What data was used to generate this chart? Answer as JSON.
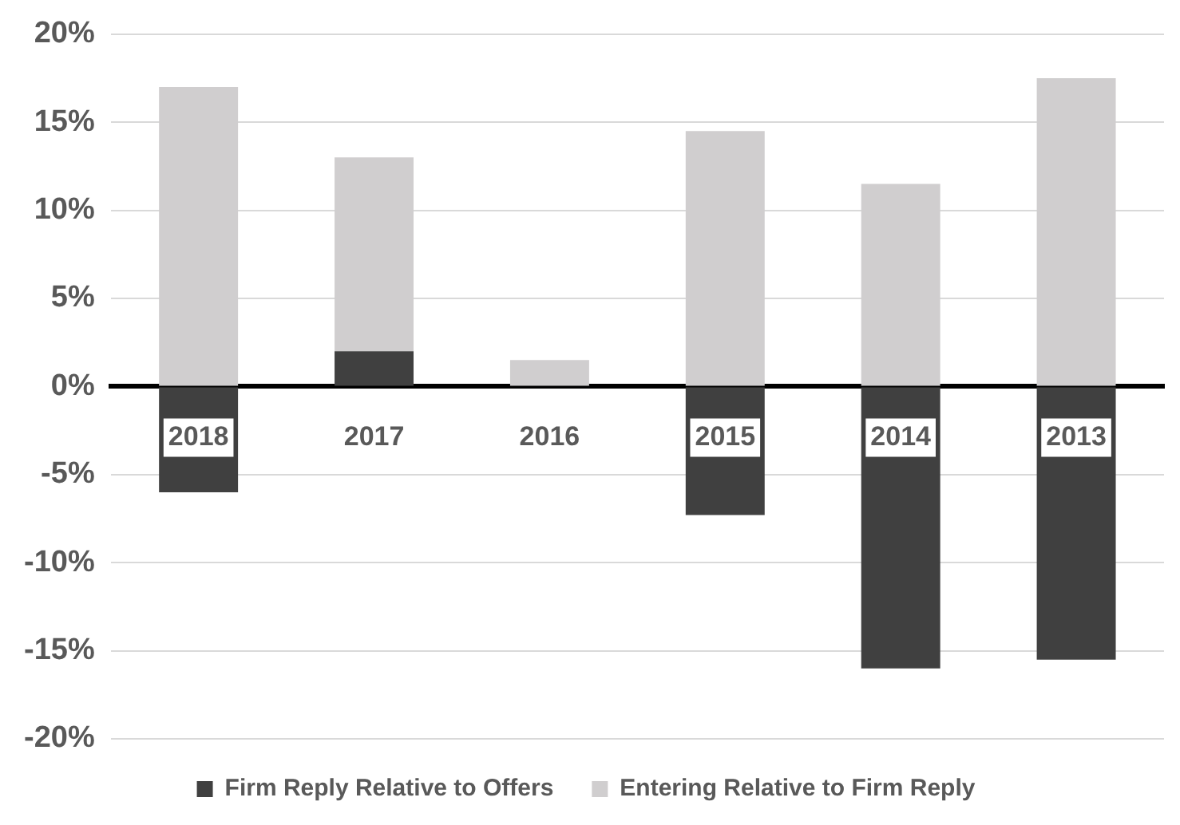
{
  "chart_data": {
    "type": "bar",
    "stacked": true,
    "categories": [
      "2018",
      "2017",
      "2016",
      "2015",
      "2014",
      "2013"
    ],
    "series": [
      {
        "name": "Firm Reply Relative to Offers",
        "color": "#404040",
        "values": [
          -6,
          2,
          0,
          -7.3,
          -16,
          -15.5
        ]
      },
      {
        "name": "Entering Relative to Firm Reply",
        "color": "#d0cecf",
        "values": [
          17,
          11,
          1.5,
          14.5,
          11.5,
          17.5
        ]
      }
    ],
    "ylim": [
      -20,
      20
    ],
    "yticks": [
      {
        "value": -20,
        "label": "-20%"
      },
      {
        "value": -15,
        "label": "-15%"
      },
      {
        "value": -10,
        "label": "-10%"
      },
      {
        "value": -5,
        "label": "-5%"
      },
      {
        "value": 0,
        "label": "0%"
      },
      {
        "value": 5,
        "label": "5%"
      },
      {
        "value": 10,
        "label": "10%"
      },
      {
        "value": 15,
        "label": "15%"
      },
      {
        "value": 20,
        "label": "20%"
      }
    ],
    "grid": "y",
    "legend": "bottom"
  }
}
